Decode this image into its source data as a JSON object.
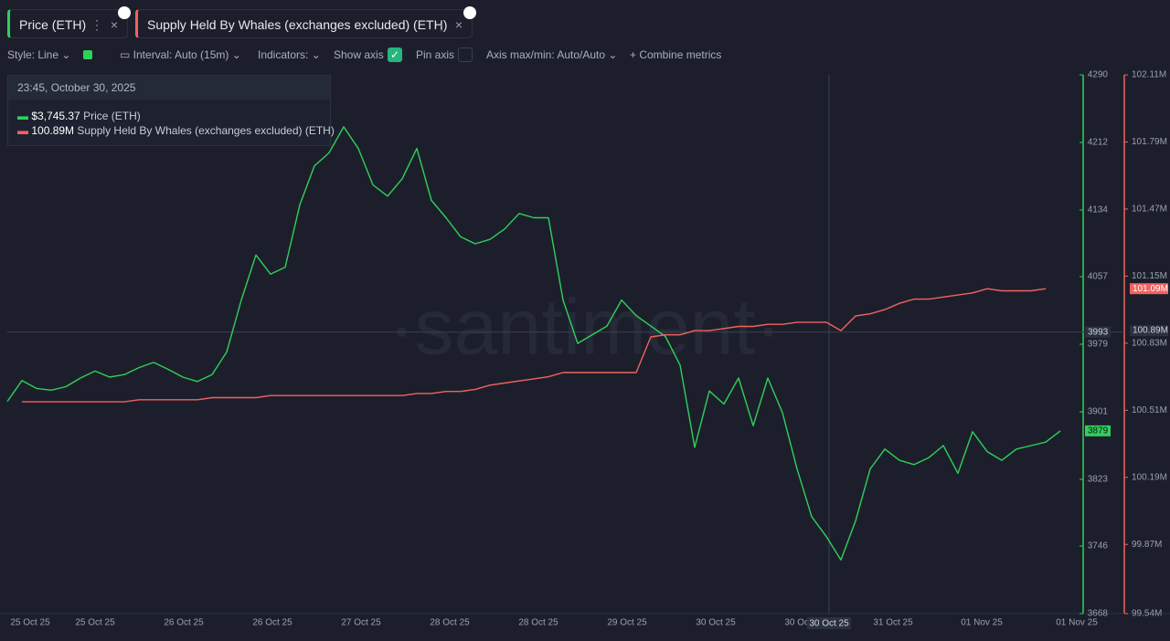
{
  "tabs_extra": {
    "close": "×"
  },
  "toolbar": {
    "style": "Style: Line",
    "interval": "Interval: Auto (15m)",
    "indicators": "Indicators:",
    "show_axis": "Show axis",
    "pin_axis": "Pin axis",
    "axis_maxmin": "Axis max/min: Auto/Auto",
    "combine": "Combine metrics"
  },
  "tooltip": {
    "date": "23:45, October 30, 2025",
    "items": [
      {
        "value": 3745.37,
        "label": "$3,745.37"
      },
      {
        "value": 100.89,
        "label": "100.89M"
      }
    ]
  },
  "watermark": "·santiment·",
  "chart_data": {
    "type": "line",
    "grid": false,
    "x_labels": [
      "25 Oct 25",
      "25 Oct 25",
      "26 Oct 25",
      "26 Oct 25",
      "27 Oct 25",
      "28 Oct 25",
      "28 Oct 25",
      "29 Oct 25",
      "30 Oct 25",
      "30 Oct 25",
      "31 Oct 25",
      "01 Nov 25",
      "01 Nov 25"
    ],
    "ylim": [
      3668,
      4290
    ],
    "yticks": [
      4290,
      4212,
      4134,
      4057,
      3979,
      3901,
      3823,
      3746,
      3668
    ],
    "y2lim": [
      99.54,
      102.11
    ],
    "y2ticks": [
      {
        "value": 102.11,
        "label": "102.11M"
      },
      {
        "value": 101.79,
        "label": "101.79M"
      },
      {
        "value": 101.47,
        "label": "101.47M"
      },
      {
        "value": 101.15,
        "label": "101.15M"
      },
      {
        "value": 100.83,
        "label": "100.83M"
      },
      {
        "value": 100.51,
        "label": "100.51M"
      },
      {
        "value": 100.19,
        "label": "100.19M"
      },
      {
        "value": 99.87,
        "label": "99.87M"
      },
      {
        "value": 99.54,
        "label": "99.54M"
      }
    ],
    "crosshair": {
      "x_label": "30 Oct 25",
      "y_value": 3993,
      "y2": {
        "value": 100.89,
        "label": "100.89M"
      }
    },
    "series": [
      {
        "name": "Price (ETH)",
        "color": "#2fd05a",
        "axis": "y",
        "values": [
          3913,
          3937,
          3928,
          3926,
          3930,
          3940,
          3948,
          3941,
          3944,
          3952,
          3958,
          3950,
          3941,
          3936,
          3944,
          3970,
          4030,
          4082,
          4060,
          4068,
          4140,
          4185,
          4200,
          4230,
          4205,
          4163,
          4150,
          4170,
          4205,
          4145,
          4125,
          4103,
          4095,
          4100,
          4112,
          4130,
          4125,
          4125,
          4030,
          3980,
          3990,
          4000,
          4030,
          4012,
          4000,
          3988,
          3955,
          3860,
          3925,
          3910,
          3940,
          3885,
          3940,
          3900,
          3835,
          3780,
          3757,
          3730,
          3775,
          3835,
          3858,
          3845,
          3840,
          3848,
          3862,
          3830,
          3878,
          3855,
          3845,
          3858,
          3862,
          3866,
          3879
        ]
      },
      {
        "name": "Supply Held By Whales (exchanges excluded) (ETH)",
        "color": "#f2625f",
        "axis": "y2",
        "last_value_label": "101.09M",
        "values": [
          null,
          100.55,
          100.55,
          100.55,
          100.55,
          100.55,
          100.55,
          100.55,
          100.55,
          100.56,
          100.56,
          100.56,
          100.56,
          100.56,
          100.57,
          100.57,
          100.57,
          100.57,
          100.58,
          100.58,
          100.58,
          100.58,
          100.58,
          100.58,
          100.58,
          100.58,
          100.58,
          100.58,
          100.59,
          100.59,
          100.6,
          100.6,
          100.61,
          100.63,
          100.64,
          100.65,
          100.66,
          100.67,
          100.69,
          100.69,
          100.69,
          100.69,
          100.69,
          100.69,
          100.86,
          100.87,
          100.87,
          100.89,
          100.89,
          100.9,
          100.91,
          100.91,
          100.92,
          100.92,
          100.93,
          100.93,
          100.93,
          100.89,
          100.96,
          100.97,
          100.99,
          101.02,
          101.04,
          101.04,
          101.05,
          101.06,
          101.07,
          101.09,
          101.08,
          101.08,
          101.08,
          101.09,
          null
        ]
      }
    ]
  }
}
